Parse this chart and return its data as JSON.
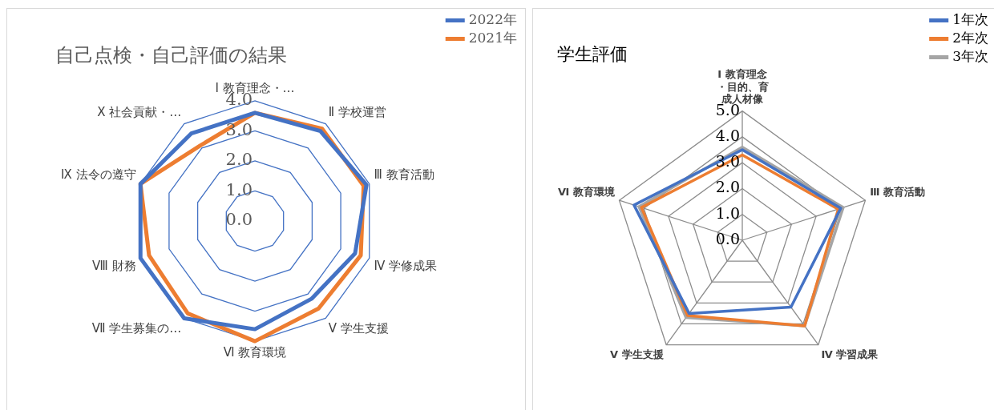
{
  "chart_data": [
    {
      "type": "radar",
      "title": "自己点検・自己評価の結果",
      "categories": [
        "Ⅰ 教育理念・…",
        "Ⅱ 学校運営",
        "Ⅲ 教育活動",
        "Ⅳ 学修成果",
        "Ⅴ 学生支援",
        "Ⅵ 教育環境",
        "Ⅶ 学生募集の…",
        "Ⅷ 財務",
        "Ⅸ 法令の遵守",
        "Ⅹ 社会貢献・…"
      ],
      "series": [
        {
          "name": "2022年",
          "color": "#4472c4",
          "values": [
            3.6,
            3.7,
            3.9,
            3.5,
            3.2,
            3.6,
            4.0,
            4.0,
            4.0,
            3.6
          ]
        },
        {
          "name": "2021年",
          "color": "#ed7d31",
          "values": [
            3.6,
            3.8,
            3.8,
            3.7,
            3.6,
            4.0,
            3.8,
            3.7,
            4.0,
            3.1
          ]
        }
      ],
      "ylim": [
        0,
        4
      ],
      "yticks": [
        {
          "value": 0,
          "label": "0.0"
        },
        {
          "value": 1,
          "label": "1.0"
        },
        {
          "value": 2,
          "label": "2.0"
        },
        {
          "value": 3,
          "label": "3.0"
        },
        {
          "value": 4,
          "label": "4.0"
        }
      ],
      "grid": "y",
      "legend": "top right",
      "marker": "none"
    },
    {
      "type": "radar",
      "title": "学生評価",
      "categories": [
        "Ⅰ 教育理念・目的、育成人材像",
        "Ⅲ 教育活動",
        "Ⅳ 学習成果",
        "Ⅴ 学生支援",
        "Ⅵ 教育環境"
      ],
      "series": [
        {
          "name": "1年次",
          "color": "#4472c4",
          "values": [
            3.5,
            4.0,
            3.2,
            3.5,
            4.4
          ]
        },
        {
          "name": "2年次",
          "color": "#ed7d31",
          "values": [
            3.3,
            3.9,
            4.1,
            3.6,
            4.1
          ]
        },
        {
          "name": "3年次",
          "color": "#a5a5a5",
          "values": [
            3.6,
            4.1,
            4.1,
            3.7,
            4.2
          ]
        }
      ],
      "ylim": [
        0,
        5
      ],
      "yticks": [
        {
          "value": 0,
          "label": "0.0"
        },
        {
          "value": 1,
          "label": "1.0"
        },
        {
          "value": 2,
          "label": "2.0"
        },
        {
          "value": 3,
          "label": "3.0"
        },
        {
          "value": 4,
          "label": "4.0"
        },
        {
          "value": 5,
          "label": "5.0"
        }
      ],
      "grid": true,
      "legend": "top right",
      "marker": "none"
    }
  ]
}
